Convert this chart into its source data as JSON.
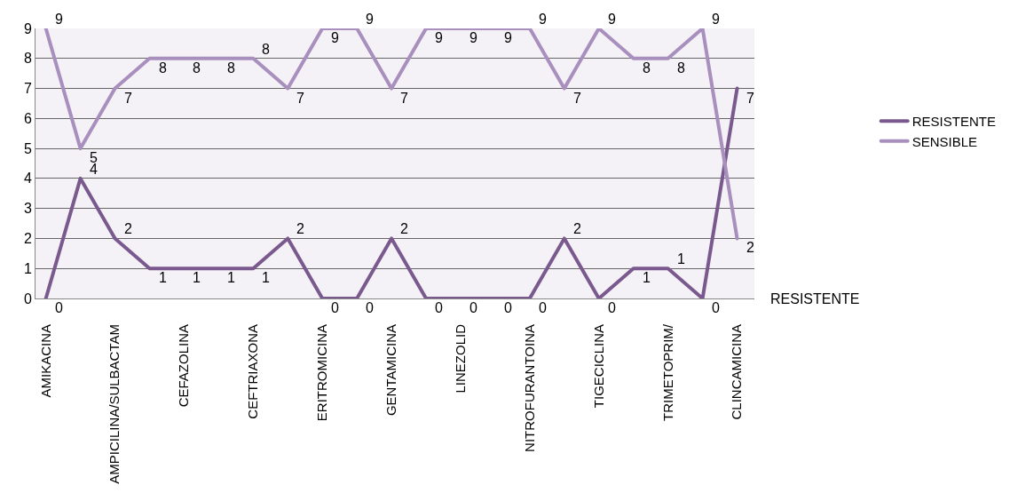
{
  "chart_data": {
    "type": "line",
    "categories": [
      "AMIKACINA",
      null,
      "AMPICILINA/SULBACTAM",
      null,
      "CEFAZOLINA",
      null,
      "CEFTRIAXONA",
      null,
      "ERITROMICINA",
      null,
      "GENTAMICINA",
      null,
      "LINEZOLID",
      null,
      "NITROFURANTOINA",
      null,
      "TIGECICLINA",
      null,
      "TRIMETOPRIM/",
      null,
      "CLINCAMICINA"
    ],
    "series": [
      {
        "name": "RESISTENTE",
        "color": "#7a5a8e",
        "values": [
          0,
          4,
          2,
          1,
          1,
          1,
          1,
          2,
          0,
          0,
          2,
          0,
          0,
          0,
          0,
          2,
          0,
          1,
          1,
          0,
          7
        ]
      },
      {
        "name": "SENSIBLE",
        "color": "#a88fbd",
        "values": [
          9,
          5,
          7,
          8,
          8,
          8,
          8,
          7,
          9,
          9,
          7,
          9,
          9,
          9,
          9,
          7,
          9,
          8,
          8,
          9,
          2
        ]
      }
    ],
    "ylim": [
      0,
      9
    ],
    "yticks": [
      0,
      1,
      2,
      3,
      4,
      5,
      6,
      7,
      8,
      9
    ],
    "grid": "y",
    "legend": "right",
    "data_labels": true,
    "marker": "none",
    "line_style": "solid",
    "annotations": [
      "RESISTENTE"
    ]
  }
}
